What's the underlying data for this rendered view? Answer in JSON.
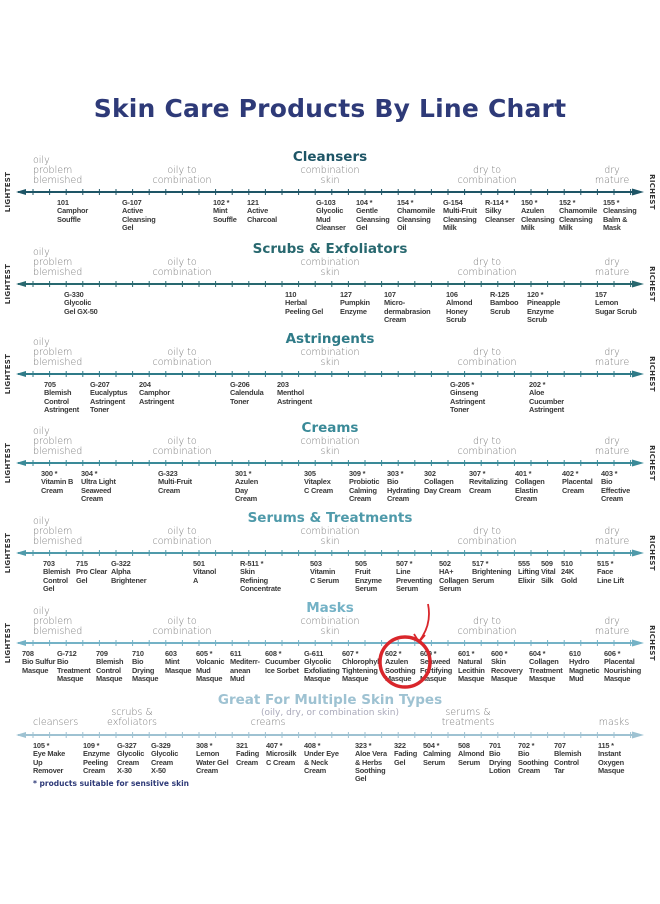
{
  "title": "Skin Care Products By Line Chart",
  "axis_ends": {
    "left": "LIGHTEST",
    "right": "RICHEST"
  },
  "skin_labels": {
    "oily": "oily\nproblem\nblemished",
    "oily_combo": "oily to\ncombination",
    "combo": "combination\nskin",
    "dry_combo": "dry to\ncombination",
    "dry": "dry\nmature"
  },
  "colors": {
    "title": "#2e3a78",
    "highlight": "#d9262b"
  },
  "sections": [
    {
      "title": "Cleansers",
      "color": "#1e5566",
      "products": [
        {
          "code": "101",
          "name": "Camphor\nSouffle"
        },
        {
          "code": "G-107",
          "name": "Active\nCleansing\nGel"
        },
        {
          "code": "102 *",
          "name": "Mint\nSouffle"
        },
        {
          "code": "121",
          "name": "Active\nCharcoal"
        },
        {
          "code": "G-103",
          "name": "Glycolic\nMud\nCleanser"
        },
        {
          "code": "104 *",
          "name": "Gentle\nCleansing\nGel"
        },
        {
          "code": "154 *",
          "name": "Chamomile\nCleansing\nOil"
        },
        {
          "code": "G-154",
          "name": "Multi-Fruit\nCleansing\nMilk"
        },
        {
          "code": "R-114 *",
          "name": "Silky\nCleanser"
        },
        {
          "code": "150 *",
          "name": "Azulen\nCleansing\nMilk"
        },
        {
          "code": "152 *",
          "name": "Chamomile\nCleansing\nMilk"
        },
        {
          "code": "155 *",
          "name": "Cleansing\nBalm &\nMask"
        }
      ]
    },
    {
      "title": "Scrubs & Exfoliators",
      "color": "#28686f",
      "products": [
        {
          "code": "G-330",
          "name": "Glycolic\nGel GX-50"
        },
        {
          "code": "110",
          "name": "Herbal\nPeeling Gel"
        },
        {
          "code": "127",
          "name": "Pumpkin\nEnzyme"
        },
        {
          "code": "107",
          "name": "Micro-\ndermabrasion\nCream"
        },
        {
          "code": "106",
          "name": "Almond\nHoney\nScrub"
        },
        {
          "code": "R-125",
          "name": "Bamboo\nScrub"
        },
        {
          "code": "120 *",
          "name": "Pineapple\nEnzyme\nScrub"
        },
        {
          "code": "157",
          "name": "Lemon\nSugar Scrub"
        }
      ]
    },
    {
      "title": "Astringents",
      "color": "#2f7b88",
      "products": [
        {
          "code": "705",
          "name": "Blemish\nControl\nAstringent"
        },
        {
          "code": "G-207",
          "name": "Eucalyptus\nAstringent\nToner"
        },
        {
          "code": "204",
          "name": "Camphor\nAstringent"
        },
        {
          "code": "G-206",
          "name": "Calendula\nToner"
        },
        {
          "code": "203",
          "name": "Menthol\nAstringent"
        },
        {
          "code": "G-205 *",
          "name": "Ginseng\nAstringent\nToner"
        },
        {
          "code": "202 *",
          "name": "Aloe\nCucumber\nAstringent"
        }
      ]
    },
    {
      "title": "Creams",
      "color": "#3a8a98",
      "products": [
        {
          "code": "300 *",
          "name": "Vitamin B\nCream"
        },
        {
          "code": "304 *",
          "name": "Ultra Light\nSeaweed\nCream"
        },
        {
          "code": "G-323",
          "name": "Multi-Fruit\nCream"
        },
        {
          "code": "301 *",
          "name": "Azulen\nDay\nCream"
        },
        {
          "code": "305",
          "name": "Vitaplex\nC Cream"
        },
        {
          "code": "309 *",
          "name": "Probiotic\nCalming\nCream"
        },
        {
          "code": "303 *",
          "name": "Bio\nHydrating\nCream"
        },
        {
          "code": "302",
          "name": "Collagen\nDay Cream"
        },
        {
          "code": "307 *",
          "name": "Revitalizing\nCream"
        },
        {
          "code": "401 *",
          "name": "Collagen\nElastin\nCream"
        },
        {
          "code": "402 *",
          "name": "Placental\nCream"
        },
        {
          "code": "403 *",
          "name": "Bio\nEffective\nCream"
        }
      ]
    },
    {
      "title": "Serums & Treatments",
      "color": "#4f9aaa",
      "products": [
        {
          "code": "703",
          "name": "Blemish\nControl\nGel"
        },
        {
          "code": "715",
          "name": "Pro Clear\nGel"
        },
        {
          "code": "G-322",
          "name": "Alpha\nBrightener"
        },
        {
          "code": "501",
          "name": "Vitanol\nA"
        },
        {
          "code": "R-511 *",
          "name": "Skin\nRefining\nConcentrate"
        },
        {
          "code": "503",
          "name": "Vitamin\nC Serum"
        },
        {
          "code": "505",
          "name": "Fruit\nEnzyme\nSerum"
        },
        {
          "code": "507 *",
          "name": "Line\nPreventing\nSerum"
        },
        {
          "code": "502",
          "name": "HA+\nCollagen\nSerum"
        },
        {
          "code": "517 *",
          "name": "Brightening\nSerum"
        },
        {
          "code": "555",
          "name": "Lifting\nElixir"
        },
        {
          "code": "509",
          "name": "Vital\nSilk"
        },
        {
          "code": "510",
          "name": "24K\nGold"
        },
        {
          "code": "515 *",
          "name": "Face\nLine Lift"
        }
      ]
    },
    {
      "title": "Masks",
      "color": "#74b2c6",
      "products": [
        {
          "code": "708",
          "name": "Bio Sulfur\nMasque"
        },
        {
          "code": "G-712",
          "name": "Bio\nTreatment\nMasque"
        },
        {
          "code": "709",
          "name": "Blemish\nControl\nMasque"
        },
        {
          "code": "710",
          "name": "Bio\nDrying\nMasque"
        },
        {
          "code": "603",
          "name": "Mint\nMasque"
        },
        {
          "code": "605 *",
          "name": "Volcanic\nMud\nMasque"
        },
        {
          "code": "611",
          "name": "Mediterr-\nanean\nMud"
        },
        {
          "code": "608 *",
          "name": "Cucumber\nIce Sorbet"
        },
        {
          "code": "G-611",
          "name": "Glycolic\nExfoliating\nMasque"
        },
        {
          "code": "607 *",
          "name": "Chlorophyll\nTightening\nMasque"
        },
        {
          "code": "602 *",
          "name": "Azulen\nSoothing\nMasque"
        },
        {
          "code": "609 *",
          "name": "Seaweed\nFortifying\nMasque"
        },
        {
          "code": "601 *",
          "name": "Natural\nLecithin\nMasque"
        },
        {
          "code": "600 *",
          "name": "Skin\nRecovery\nMasque"
        },
        {
          "code": "604 *",
          "name": "Collagen\nTreatment\nMasque"
        },
        {
          "code": "610",
          "name": "Hydro\nMagnetic\nMud"
        },
        {
          "code": "606 *",
          "name": "Placental\nNourishing\nMasque"
        }
      ]
    }
  ],
  "multi": {
    "title": "Great For Multiple Skin Types",
    "subtitle": "(oily, dry, or combination skin)",
    "color": "#9ec2d2",
    "labels": {
      "cleansers": "cleansers",
      "scrubs": "scrubs &\nexfoliators",
      "creams": "creams",
      "serums": "serums &\ntreatments",
      "masks": "masks"
    },
    "products": [
      {
        "code": "105 *",
        "name": "Eye Make\nUp\nRemover"
      },
      {
        "code": "109 *",
        "name": "Enzyme\nPeeling\nCream"
      },
      {
        "code": "G-327",
        "name": "Glycolic\nCream\nX-30"
      },
      {
        "code": "G-329",
        "name": "Glycolic\nCream\nX-50"
      },
      {
        "code": "308 *",
        "name": "Lemon\nWater Gel\nCream"
      },
      {
        "code": "321",
        "name": "Fading\nCream"
      },
      {
        "code": "407 *",
        "name": "Microsilk\nC Cream"
      },
      {
        "code": "408 *",
        "name": "Under Eye\n& Neck\nCream"
      },
      {
        "code": "323 *",
        "name": "Aloe Vera\n& Herbs\nSoothing\nGel"
      },
      {
        "code": "322",
        "name": "Fading\nGel"
      },
      {
        "code": "504 *",
        "name": "Calming\nSerum"
      },
      {
        "code": "508",
        "name": "Almond\nSerum"
      },
      {
        "code": "701",
        "name": "Bio\nDrying\nLotion"
      },
      {
        "code": "702 *",
        "name": "Bio\nSoothing\nCream"
      },
      {
        "code": "707",
        "name": "Blemish\nControl\nTar"
      },
      {
        "code": "115 *",
        "name": "Instant\nOxygen\nMasque"
      }
    ]
  },
  "footnote": "* products suitable for sensitive skin"
}
